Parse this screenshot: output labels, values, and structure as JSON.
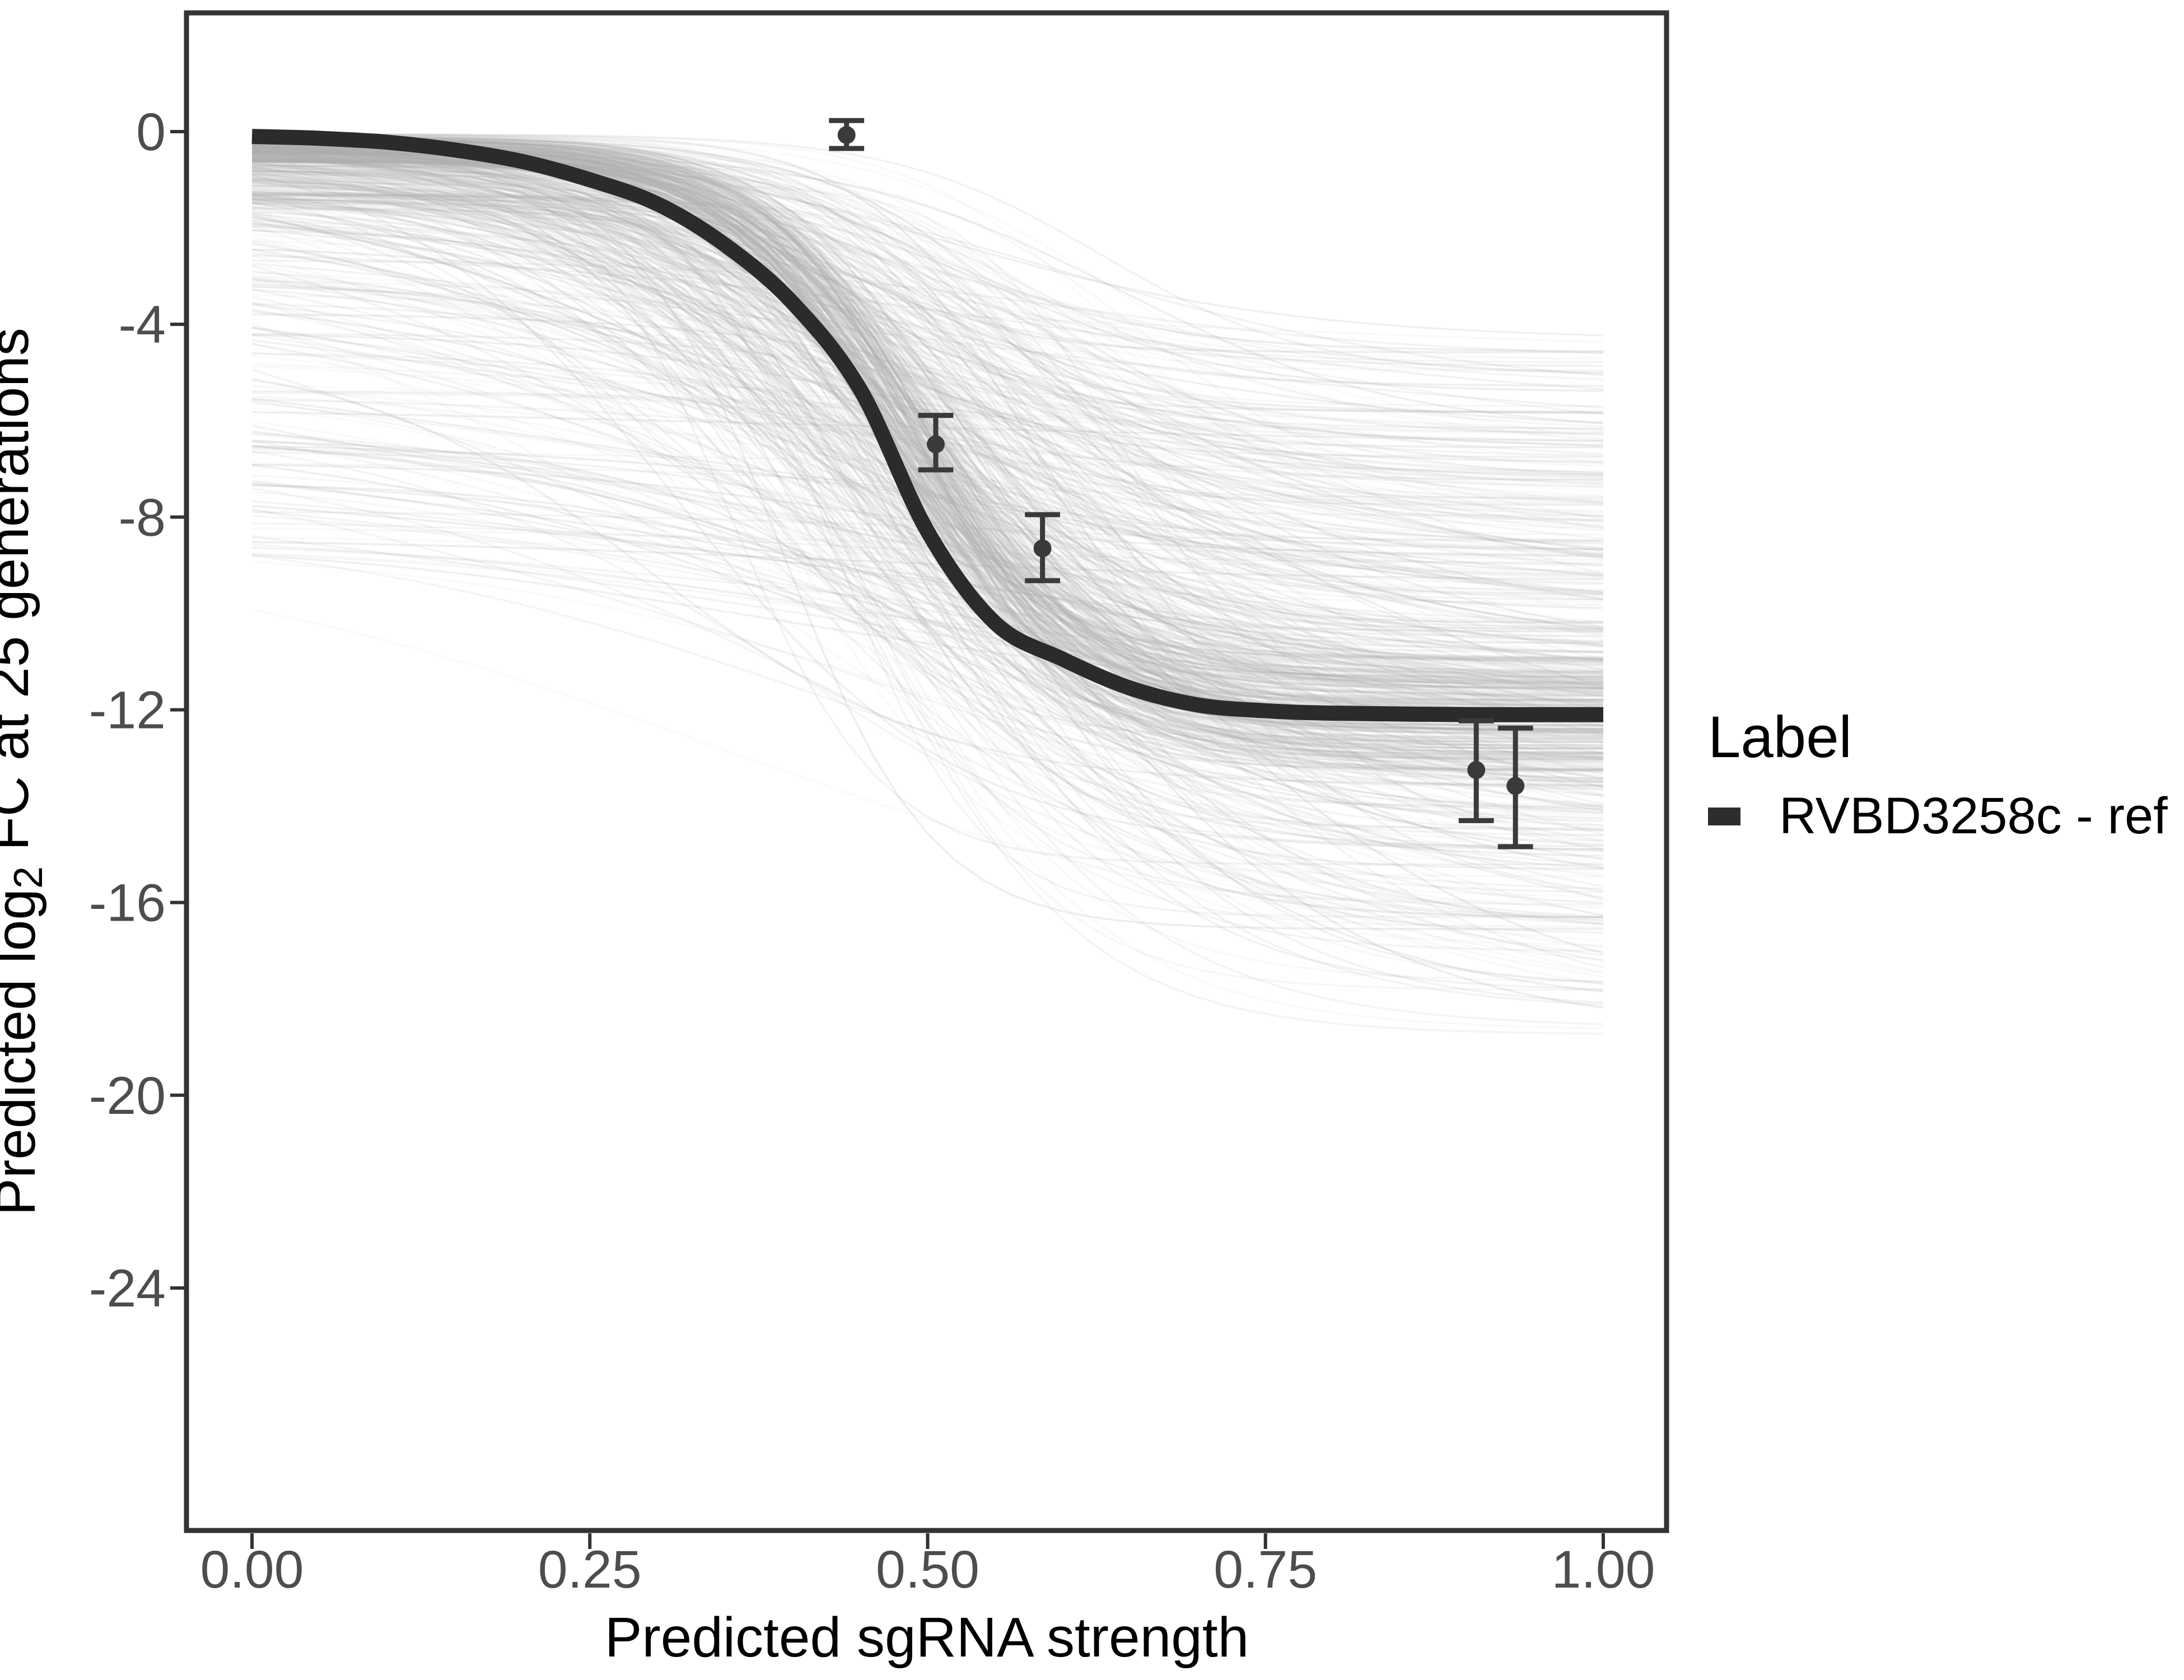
{
  "figure": {
    "background": "#ffffff",
    "panel_border_color": "#333333",
    "axis_text_color": "#4d4d4d",
    "axis_title_color": "#000000"
  },
  "chart_data": {
    "type": "line",
    "title": "",
    "xlabel": "Predicted sgRNA strength",
    "ylabel": "Predicted  log₂ FC at 25 generations",
    "ylabel_parts": {
      "pre": "Predicted  log",
      "sub": "2",
      "post": " FC at 25 generations"
    },
    "x_ticks": [
      "0.00",
      "0.25",
      "0.50",
      "0.75",
      "1.00"
    ],
    "x_tick_values": [
      0,
      0.25,
      0.5,
      0.75,
      1.0
    ],
    "y_ticks": [
      "0",
      "-4",
      "-8",
      "-12",
      "-16",
      "-20",
      "-24"
    ],
    "y_tick_values": [
      0,
      -4,
      -8,
      -12,
      -16,
      -20,
      -24
    ],
    "xlim": [
      -0.05,
      1.047
    ],
    "ylim": [
      -28.9,
      2.45
    ],
    "grid": false,
    "legend": {
      "title": "Label",
      "position": "right",
      "entries": [
        {
          "label": "RVBD3258c - ref",
          "color": "#2d2d2d",
          "type": "thick-line"
        }
      ]
    },
    "main_curve": {
      "name": "RVBD3258c - ref",
      "color": "#2b2b2b",
      "stroke_width": 27,
      "points": [
        [
          0.0,
          -0.1
        ],
        [
          0.05,
          -0.14
        ],
        [
          0.1,
          -0.22
        ],
        [
          0.15,
          -0.38
        ],
        [
          0.2,
          -0.62
        ],
        [
          0.25,
          -1.0
        ],
        [
          0.3,
          -1.5
        ],
        [
          0.35,
          -2.35
        ],
        [
          0.4,
          -3.55
        ],
        [
          0.45,
          -5.35
        ],
        [
          0.5,
          -8.3
        ],
        [
          0.55,
          -10.2
        ],
        [
          0.6,
          -10.95
        ],
        [
          0.65,
          -11.55
        ],
        [
          0.7,
          -11.9
        ],
        [
          0.75,
          -12.02
        ],
        [
          0.8,
          -12.07
        ],
        [
          0.9,
          -12.1
        ],
        [
          1.0,
          -12.1
        ]
      ]
    },
    "error_points": [
      {
        "x": 0.44,
        "y": -0.07,
        "ymin": -0.35,
        "ymax": 0.23
      },
      {
        "x": 0.506,
        "y": -6.49,
        "ymin": -7.02,
        "ymax": -5.89
      },
      {
        "x": 0.585,
        "y": -8.65,
        "ymin": -9.32,
        "ymax": -7.95
      },
      {
        "x": 0.906,
        "y": -13.25,
        "ymin": -14.3,
        "ymax": -12.23
      },
      {
        "x": 0.935,
        "y": -13.58,
        "ymin": -14.84,
        "ymax": -12.38
      }
    ],
    "error_point_style": {
      "color": "#3a3a3a",
      "cap_halfwidth_x": 0.013,
      "dot_radius": 16
    },
    "ensemble": {
      "description": "posterior sigmoid draws, semi-transparent light gray, x from 0 to 1",
      "color": "#b0b0b0",
      "n_curves": 560,
      "seed": 42,
      "start_value_range": [
        0,
        -9
      ],
      "end_value_range": [
        -4.3,
        -18.8
      ],
      "end_value_center": -12,
      "midpoint_range": [
        0.28,
        0.78
      ]
    }
  }
}
